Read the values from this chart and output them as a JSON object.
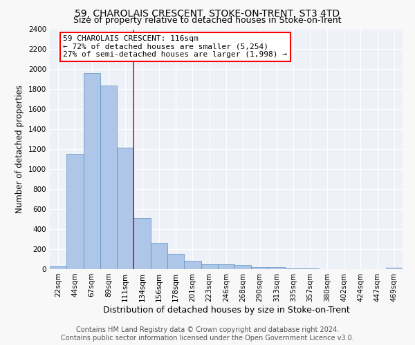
{
  "title": "59, CHAROLAIS CRESCENT, STOKE-ON-TRENT, ST3 4TD",
  "subtitle": "Size of property relative to detached houses in Stoke-on-Trent",
  "xlabel": "Distribution of detached houses by size in Stoke-on-Trent",
  "ylabel": "Number of detached properties",
  "categories": [
    "22sqm",
    "44sqm",
    "67sqm",
    "89sqm",
    "111sqm",
    "134sqm",
    "156sqm",
    "178sqm",
    "201sqm",
    "223sqm",
    "246sqm",
    "268sqm",
    "290sqm",
    "313sqm",
    "335sqm",
    "357sqm",
    "380sqm",
    "402sqm",
    "424sqm",
    "447sqm",
    "469sqm"
  ],
  "values": [
    30,
    1150,
    1960,
    1840,
    1215,
    510,
    265,
    155,
    80,
    50,
    45,
    40,
    20,
    18,
    10,
    10,
    0,
    0,
    0,
    0,
    15
  ],
  "bar_color": "#aec6e8",
  "bar_edge_color": "#5a8fc0",
  "reference_line_color": "red",
  "annotation_text_line1": "59 CHAROLAIS CRESCENT: 116sqm",
  "annotation_text_line2": "← 72% of detached houses are smaller (5,254)",
  "annotation_text_line3": "27% of semi-detached houses are larger (1,998) →",
  "ylim": [
    0,
    2400
  ],
  "yticks": [
    0,
    200,
    400,
    600,
    800,
    1000,
    1200,
    1400,
    1600,
    1800,
    2000,
    2200,
    2400
  ],
  "footer_line1": "Contains HM Land Registry data © Crown copyright and database right 2024.",
  "footer_line2": "Contains public sector information licensed under the Open Government Licence v3.0.",
  "fig_facecolor": "#f8f8f8",
  "ax_facecolor": "#eef2f8",
  "grid_color": "#ffffff",
  "title_fontsize": 10,
  "subtitle_fontsize": 9,
  "ylabel_fontsize": 8.5,
  "xlabel_fontsize": 9,
  "tick_fontsize": 7.5,
  "annotation_fontsize": 8,
  "footer_fontsize": 7
}
